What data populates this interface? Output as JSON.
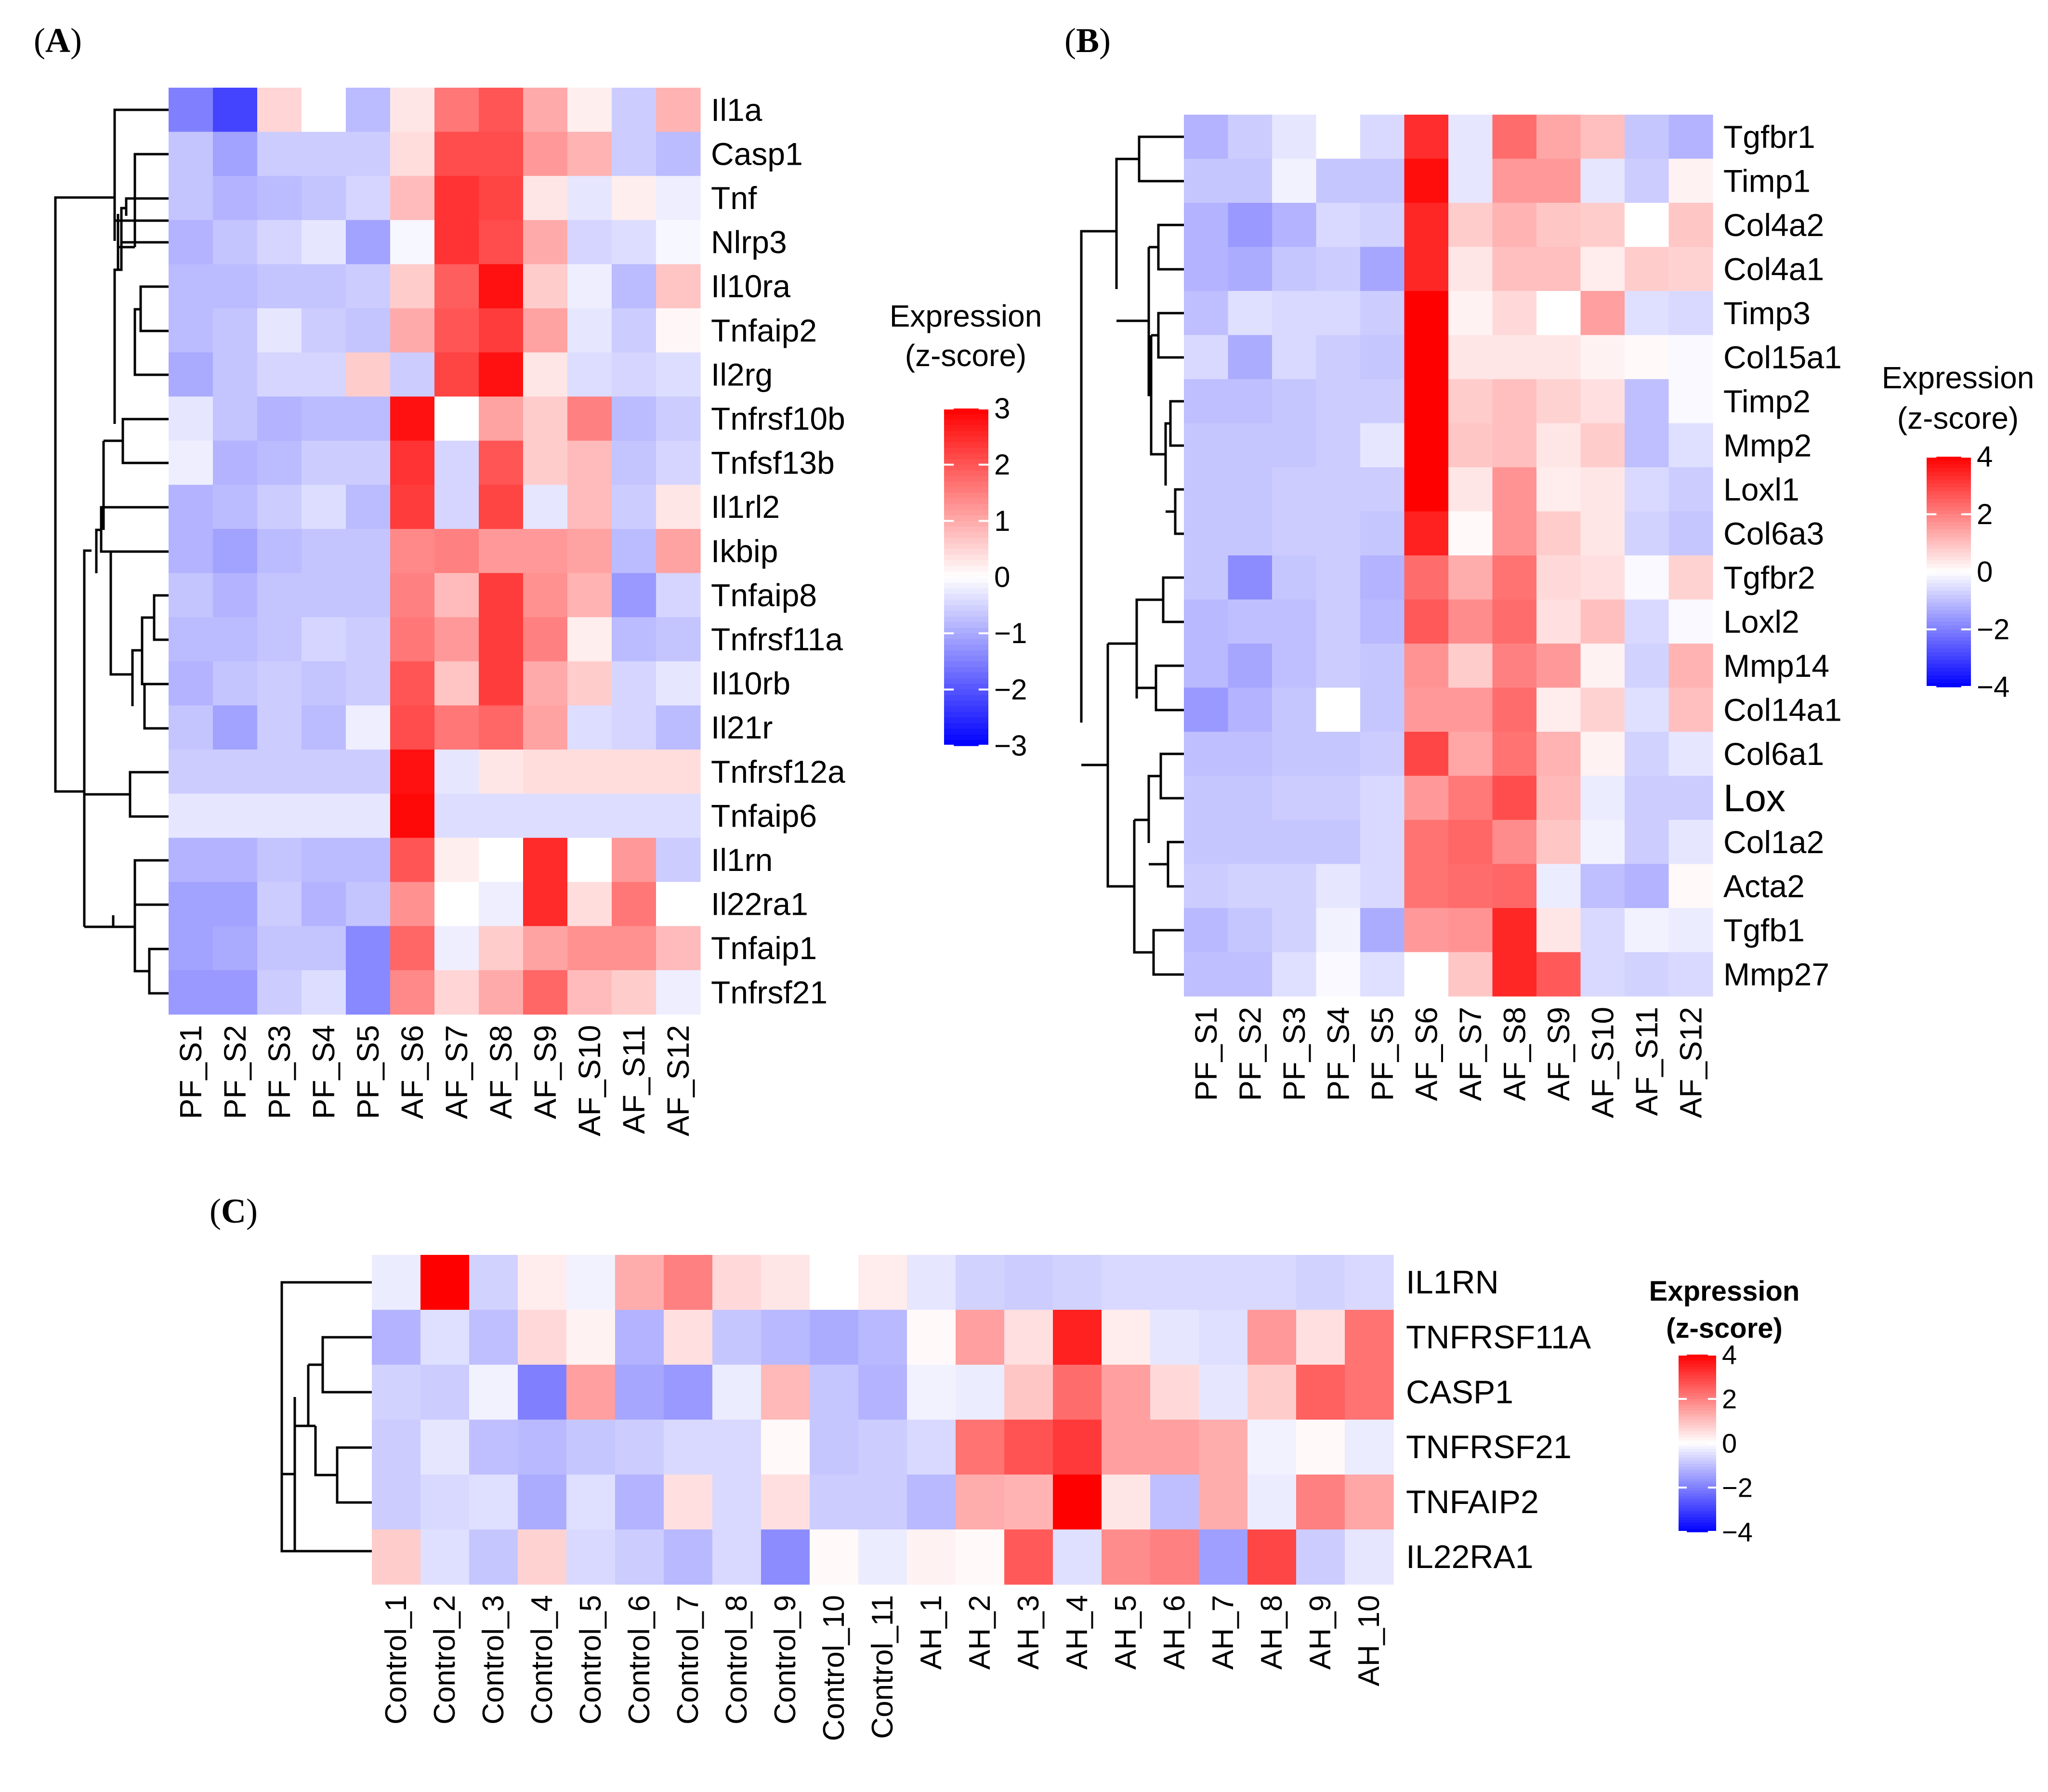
{
  "chart_data": [
    {
      "type": "heatmap",
      "panel_label": "A",
      "rows": [
        "Il1a",
        "Casp1",
        "Tnf",
        "Nlrp3",
        "Il10ra",
        "Tnfaip2",
        "Il2rg",
        "Tnfrsf10b",
        "Tnfsf13b",
        "Il1rl2",
        "Ikbip",
        "Tnfaip8",
        "Tnfrsf11a",
        "Il10rb",
        "Il21r",
        "Tnfrsf12a",
        "Tnfaip6",
        "Il1rn",
        "Il22ra1",
        "Tnfaip1",
        "Tnfrsf21"
      ],
      "columns": [
        "PF_S1",
        "PF_S2",
        "PF_S3",
        "PF_S4",
        "PF_S5",
        "AF_S6",
        "AF_S7",
        "AF_S8",
        "AF_S9",
        "AF_S10",
        "AF_S11",
        "AF_S12"
      ],
      "values": [
        [
          -1.5,
          -2.2,
          0.5,
          0,
          -0.8,
          0.3,
          1.6,
          2.0,
          1.0,
          0.2,
          -0.6,
          0.9
        ],
        [
          -0.7,
          -1.1,
          -0.6,
          -0.6,
          -0.6,
          0.4,
          2.1,
          2.1,
          1.2,
          0.9,
          -0.6,
          -0.8
        ],
        [
          -0.7,
          -0.9,
          -0.8,
          -0.7,
          -0.5,
          0.8,
          2.4,
          2.2,
          0.3,
          -0.3,
          0.2,
          -0.2
        ],
        [
          -0.9,
          -0.7,
          -0.5,
          -0.3,
          -1.1,
          -0.1,
          2.4,
          2.1,
          1.0,
          -0.5,
          -0.4,
          -0.1
        ],
        [
          -0.8,
          -0.8,
          -0.7,
          -0.7,
          -0.6,
          0.6,
          1.9,
          2.8,
          0.6,
          -0.2,
          -0.8,
          0.7
        ],
        [
          -0.8,
          -0.7,
          -0.3,
          -0.6,
          -0.7,
          1.0,
          2.0,
          2.3,
          1.1,
          -0.3,
          -0.6,
          0.1
        ],
        [
          -1.0,
          -0.7,
          -0.5,
          -0.5,
          0.6,
          -0.6,
          2.2,
          2.8,
          0.3,
          -0.4,
          -0.5,
          -0.4
        ],
        [
          -0.3,
          -0.7,
          -0.9,
          -0.8,
          -0.8,
          2.8,
          0,
          1.1,
          0.6,
          1.5,
          -0.8,
          -0.6
        ],
        [
          -0.2,
          -0.9,
          -0.8,
          -0.6,
          -0.6,
          2.4,
          -0.5,
          2.0,
          0.6,
          0.8,
          -0.7,
          -0.5
        ],
        [
          -0.9,
          -0.8,
          -0.6,
          -0.4,
          -0.8,
          2.3,
          -0.5,
          2.2,
          -0.3,
          0.8,
          -0.6,
          0.3
        ],
        [
          -0.9,
          -1.1,
          -0.8,
          -0.7,
          -0.7,
          1.4,
          1.5,
          1.2,
          1.2,
          1.1,
          -0.8,
          1.1
        ],
        [
          -0.7,
          -0.9,
          -0.7,
          -0.7,
          -0.7,
          1.5,
          0.8,
          2.3,
          1.3,
          0.9,
          -1.2,
          -0.5
        ],
        [
          -0.8,
          -0.8,
          -0.7,
          -0.5,
          -0.6,
          1.6,
          1.2,
          2.3,
          1.5,
          0.2,
          -0.8,
          -0.7
        ],
        [
          -0.9,
          -0.7,
          -0.6,
          -0.7,
          -0.6,
          2.0,
          0.7,
          2.3,
          1.0,
          0.6,
          -0.5,
          -0.3
        ],
        [
          -0.7,
          -1.1,
          -0.6,
          -0.8,
          -0.2,
          2.1,
          1.6,
          1.8,
          1.1,
          -0.4,
          -0.5,
          -0.8
        ],
        [
          -0.6,
          -0.6,
          -0.6,
          -0.6,
          -0.6,
          2.8,
          -0.3,
          0.3,
          0.4,
          0.4,
          0.4,
          0.4
        ],
        [
          -0.3,
          -0.3,
          -0.3,
          -0.3,
          -0.3,
          2.9,
          -0.4,
          -0.4,
          -0.4,
          -0.4,
          -0.4,
          -0.4
        ],
        [
          -0.9,
          -0.9,
          -0.7,
          -0.8,
          -0.8,
          2.0,
          0.2,
          0,
          2.5,
          0,
          1.2,
          -0.6
        ],
        [
          -1.1,
          -1.1,
          -0.6,
          -0.9,
          -0.7,
          1.3,
          0,
          -0.2,
          2.5,
          0.4,
          1.6,
          0
        ],
        [
          -1.1,
          -1.0,
          -0.7,
          -0.7,
          -1.4,
          1.8,
          -0.2,
          0.6,
          1.1,
          1.3,
          1.3,
          0.8
        ],
        [
          -1.2,
          -1.2,
          -0.6,
          -0.4,
          -1.4,
          1.4,
          0.5,
          1.0,
          1.8,
          0.8,
          0.6,
          -0.2
        ]
      ],
      "scale": {
        "min": -3,
        "max": 3,
        "ticks": [
          3,
          2,
          1,
          0,
          -1,
          -2,
          -3
        ]
      },
      "legend_title": [
        "Expression",
        "(z-score)"
      ]
    },
    {
      "type": "heatmap",
      "panel_label": "B",
      "rows": [
        "Tgfbr1",
        "Timp1",
        "Col4a2",
        "Col4a1",
        "Timp3",
        "Col15a1",
        "Timp2",
        "Mmp2",
        "Loxl1",
        "Col6a3",
        "Tgfbr2",
        "Loxl2",
        "Mmp14",
        "Col14a1",
        "Col6a1",
        "Lox",
        "Col1a2",
        "Acta2",
        "Tgfb1",
        "Mmp27"
      ],
      "columns": [
        "PF_S1",
        "PF_S2",
        "PF_S3",
        "PF_S4",
        "PF_S5",
        "AF_S6",
        "AF_S7",
        "AF_S8",
        "AF_S9",
        "AF_S10",
        "AF_S11",
        "AF_S12"
      ],
      "values": [
        [
          -1.2,
          -0.8,
          -0.4,
          0,
          -0.6,
          3.3,
          -0.4,
          2.3,
          1.4,
          1.0,
          -0.9,
          -1.2
        ],
        [
          -0.9,
          -0.9,
          -0.2,
          -0.9,
          -0.9,
          3.8,
          -0.4,
          1.6,
          1.6,
          -0.4,
          -0.8,
          0.2
        ],
        [
          -1.2,
          -1.6,
          -1.2,
          -0.6,
          -0.7,
          3.4,
          0.8,
          1.2,
          0.9,
          0.8,
          0,
          0.9
        ],
        [
          -1.2,
          -1.3,
          -0.9,
          -0.8,
          -1.4,
          3.4,
          0.4,
          1.0,
          1.0,
          0.3,
          0.8,
          0.7
        ],
        [
          -1.0,
          -0.5,
          -0.6,
          -0.6,
          -0.8,
          4.0,
          0.2,
          0.6,
          0,
          1.5,
          -0.5,
          -0.6
        ],
        [
          -0.6,
          -1.3,
          -0.6,
          -0.8,
          -0.9,
          4.0,
          0.4,
          0.4,
          0.4,
          0.2,
          0.1,
          -0.1
        ],
        [
          -1.0,
          -1.0,
          -0.9,
          -0.8,
          -0.8,
          4.0,
          0.8,
          1.0,
          0.7,
          0.5,
          -1.0,
          -0.1
        ],
        [
          -0.9,
          -0.9,
          -0.9,
          -0.8,
          -0.4,
          4.0,
          0.9,
          1.0,
          0.4,
          0.8,
          -1.0,
          -0.5
        ],
        [
          -0.9,
          -0.9,
          -0.8,
          -0.8,
          -0.8,
          4.0,
          0.4,
          1.7,
          0.3,
          0.4,
          -0.6,
          -0.8
        ],
        [
          -0.9,
          -0.9,
          -0.8,
          -0.8,
          -0.9,
          3.5,
          0.1,
          1.7,
          0.8,
          0.4,
          -0.7,
          -0.9
        ],
        [
          -0.9,
          -1.8,
          -0.9,
          -0.8,
          -1.2,
          2.3,
          1.3,
          2.2,
          0.6,
          0.5,
          -0.1,
          0.7
        ],
        [
          -1.1,
          -1.0,
          -1.0,
          -0.8,
          -1.1,
          2.6,
          1.8,
          2.3,
          0.5,
          1.0,
          -0.6,
          -0.1
        ],
        [
          -1.1,
          -1.4,
          -1.0,
          -0.8,
          -0.9,
          1.7,
          0.8,
          2.0,
          1.6,
          0.2,
          -0.7,
          1.2
        ],
        [
          -1.6,
          -1.2,
          -0.9,
          0,
          -0.9,
          1.6,
          1.6,
          2.3,
          0.3,
          0.7,
          -0.5,
          1.0
        ],
        [
          -1.0,
          -1.0,
          -0.9,
          -0.9,
          -0.8,
          2.9,
          1.4,
          2.2,
          1.2,
          0.2,
          -0.7,
          -0.4
        ],
        [
          -0.9,
          -0.9,
          -0.8,
          -0.8,
          -0.6,
          1.6,
          2.1,
          2.8,
          1.1,
          -0.3,
          -0.8,
          -0.8
        ],
        [
          -0.9,
          -0.9,
          -0.9,
          -0.9,
          -0.6,
          2.2,
          2.4,
          1.8,
          0.9,
          -0.2,
          -0.8,
          -0.4
        ],
        [
          -0.8,
          -0.7,
          -0.7,
          -0.4,
          -0.6,
          2.2,
          2.3,
          2.4,
          -0.3,
          -1.0,
          -1.2,
          0.1
        ],
        [
          -1.1,
          -0.9,
          -0.7,
          -0.2,
          -1.3,
          1.6,
          1.7,
          3.4,
          0.4,
          -0.6,
          -0.2,
          -0.3
        ],
        [
          -1.0,
          -1.0,
          -0.5,
          -0.1,
          -0.5,
          0,
          0.9,
          3.4,
          2.6,
          -0.6,
          -0.7,
          -0.6
        ]
      ],
      "scale": {
        "min": -4,
        "max": 4,
        "ticks": [
          4,
          2,
          0,
          -2,
          -4
        ]
      },
      "legend_title": [
        "Expression",
        "(z-score)"
      ]
    },
    {
      "type": "heatmap",
      "panel_label": "C",
      "rows": [
        "IL1RN",
        "TNFRSF11A",
        "CASP1",
        "TNFRSF21",
        "TNFAIP2",
        "IL22RA1"
      ],
      "columns": [
        "Control_1",
        "Control_2",
        "Control_3",
        "Control_4",
        "Control_5",
        "Control_6",
        "Control_7",
        "Control_8",
        "Control_9",
        "Control_10",
        "Control_11",
        "AH_1",
        "AH_2",
        "AH_3",
        "AH_4",
        "AH_5",
        "AH_6",
        "AH_7",
        "AH_8",
        "AH_9",
        "AH_10"
      ],
      "values": [
        [
          -0.3,
          4.0,
          -0.7,
          0.3,
          -0.2,
          1.3,
          2.0,
          0.6,
          0.4,
          0,
          0.3,
          -0.4,
          -0.7,
          -0.8,
          -0.7,
          -0.6,
          -0.6,
          -0.6,
          -0.6,
          -0.7,
          -0.6
        ],
        [
          -1.2,
          -0.5,
          -1.0,
          0.6,
          0.2,
          -1.2,
          0.5,
          -0.9,
          -1.1,
          -1.3,
          -1.1,
          0.1,
          1.5,
          0.5,
          3.5,
          0.3,
          -0.4,
          -0.5,
          1.6,
          0.5,
          2.2
        ],
        [
          -0.7,
          -0.8,
          -0.2,
          -2.0,
          1.5,
          -1.4,
          -1.6,
          -0.3,
          1.1,
          -0.9,
          -1.2,
          -0.2,
          -0.3,
          0.9,
          2.3,
          1.5,
          0.6,
          -0.4,
          0.8,
          2.5,
          2.2
        ],
        [
          -0.8,
          -0.4,
          -1.0,
          -1.1,
          -0.9,
          -0.8,
          -0.6,
          -0.6,
          0.1,
          -0.9,
          -0.8,
          -0.6,
          2.2,
          2.7,
          3.1,
          1.5,
          1.5,
          1.3,
          -0.2,
          0.1,
          -0.3
        ],
        [
          -0.8,
          -0.6,
          -0.5,
          -1.3,
          -0.5,
          -1.2,
          0.5,
          -0.6,
          0.5,
          -0.8,
          -0.8,
          -1.1,
          1.3,
          1.2,
          4.0,
          0.4,
          -1.0,
          1.3,
          -0.3,
          2.0,
          1.4
        ],
        [
          0.8,
          -0.5,
          -0.9,
          0.7,
          -0.6,
          -0.8,
          -1.1,
          -0.6,
          -1.8,
          0.1,
          -0.3,
          0.2,
          0.1,
          2.6,
          -0.5,
          1.8,
          2.0,
          -1.5,
          2.9,
          -0.8,
          -0.4
        ]
      ],
      "scale": {
        "min": -4,
        "max": 4,
        "ticks": [
          4,
          2,
          0,
          -2,
          -4
        ]
      },
      "legend_title": [
        "Expression",
        "(z-score)"
      ]
    }
  ]
}
